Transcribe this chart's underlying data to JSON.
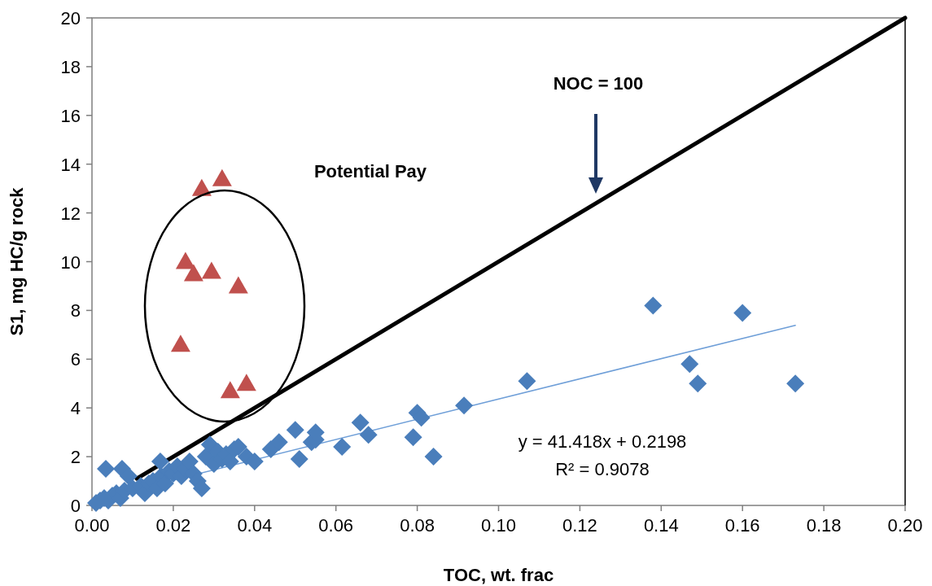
{
  "chart_data": {
    "type": "scatter",
    "xlabel": "TOC, wt. frac",
    "ylabel": "S1, mg HC/g rock",
    "xlim": [
      0,
      0.2
    ],
    "ylim": [
      0,
      20
    ],
    "xticks": [
      {
        "value": 0,
        "label": "0.00"
      },
      {
        "value": 0.02,
        "label": "0.02"
      },
      {
        "value": 0.04,
        "label": "0.04"
      },
      {
        "value": 0.06,
        "label": "0.06"
      },
      {
        "value": 0.08,
        "label": "0.08"
      },
      {
        "value": 0.1,
        "label": "0.10"
      },
      {
        "value": 0.12,
        "label": "0.12"
      },
      {
        "value": 0.14,
        "label": "0.14"
      },
      {
        "value": 0.16,
        "label": "0.16"
      },
      {
        "value": 0.18,
        "label": "0.18"
      },
      {
        "value": 0.2,
        "label": "0.20"
      }
    ],
    "yticks": [
      0,
      2,
      4,
      6,
      8,
      10,
      12,
      14,
      16,
      18,
      20
    ],
    "grid": false,
    "series": [
      {
        "type": "line",
        "color": "#000000",
        "line_style": "solid",
        "x": [
          0.011,
          0.2
        ],
        "values": [
          1.1,
          20
        ]
      },
      {
        "type": "line",
        "color": "#6f9fd8",
        "line_style": "solid",
        "x": [
          0.001,
          0.173
        ],
        "values": [
          0.26,
          7.39
        ]
      },
      {
        "color": "#4a7ebb",
        "marker": "diamond",
        "x": [
          0.001,
          0.002,
          0.003,
          0.004,
          0.005,
          0.006,
          0.007,
          0.008,
          0.01,
          0.012,
          0.013,
          0.014,
          0.015,
          0.016,
          0.017,
          0.018,
          0.019,
          0.02,
          0.021,
          0.022,
          0.023,
          0.024,
          0.025,
          0.026,
          0.027,
          0.028,
          0.029,
          0.03,
          0.031,
          0.032,
          0.033,
          0.034,
          0.035,
          0.036,
          0.038,
          0.04,
          0.0034,
          0.0074,
          0.009,
          0.0168,
          0.044,
          0.046,
          0.05,
          0.051,
          0.054,
          0.055,
          0.055,
          0.0615,
          0.066,
          0.068,
          0.079,
          0.08,
          0.081,
          0.084,
          0.0915,
          0.107,
          0.138,
          0.147,
          0.149,
          0.16,
          0.173
        ],
        "values": [
          0.1,
          0.2,
          0.3,
          0.2,
          0.4,
          0.5,
          0.3,
          0.6,
          0.7,
          0.8,
          0.5,
          0.9,
          1.0,
          0.7,
          1.2,
          0.9,
          1.4,
          1.3,
          1.6,
          1.2,
          1.5,
          1.8,
          1.3,
          1.0,
          0.7,
          2.0,
          2.5,
          1.7,
          2.2,
          1.9,
          2.1,
          1.8,
          2.3,
          2.4,
          2.0,
          1.8,
          1.5,
          1.5,
          1.2,
          1.8,
          2.3,
          2.6,
          3.1,
          1.9,
          2.6,
          2.7,
          3.0,
          2.4,
          3.4,
          2.9,
          2.8,
          3.8,
          3.6,
          2.0,
          4.1,
          5.1,
          8.2,
          5.8,
          5.0,
          7.9,
          5.0
        ]
      },
      {
        "color": "#c0504d",
        "marker": "triangle",
        "x": [
          0.0218,
          0.023,
          0.025,
          0.0294,
          0.027,
          0.032,
          0.036,
          0.034,
          0.038
        ],
        "values": [
          6.6,
          10.0,
          9.5,
          9.6,
          13.0,
          13.4,
          9.0,
          4.7,
          5.0
        ]
      }
    ],
    "annotations": [
      "NOC = 100",
      "Potential Pay",
      "y = 41.418x + 0.2198",
      "R² = 0.9078"
    ]
  }
}
